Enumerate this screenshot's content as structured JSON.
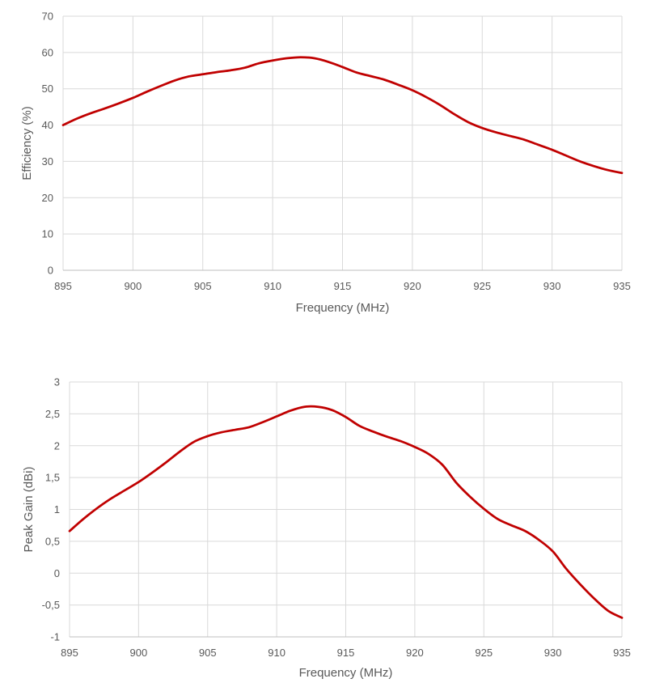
{
  "chart_data": [
    {
      "type": "line",
      "title": "",
      "xlabel": "Frequency (MHz)",
      "ylabel": "Efficiency (%)",
      "xlim": [
        895,
        935
      ],
      "ylim": [
        0,
        70
      ],
      "x_ticks": [
        "895",
        "900",
        "905",
        "910",
        "915",
        "920",
        "925",
        "930",
        "935"
      ],
      "y_ticks": [
        "0",
        "10",
        "20",
        "30",
        "40",
        "50",
        "60",
        "70"
      ],
      "grid": true,
      "legend": "none",
      "series": [
        {
          "color": "#c00000",
          "x": [
            895,
            896,
            897,
            898,
            899,
            900,
            901,
            902,
            903,
            904,
            905,
            906,
            907,
            908,
            909,
            910,
            911,
            912,
            913,
            914,
            915,
            916,
            917,
            918,
            919,
            920,
            921,
            922,
            923,
            924,
            925,
            926,
            927,
            928,
            929,
            930,
            931,
            932,
            933,
            934,
            935
          ],
          "y": [
            40,
            41.8,
            43.3,
            44.6,
            46,
            47.5,
            49.2,
            50.8,
            52.3,
            53.4,
            54,
            54.6,
            55.1,
            55.8,
            57,
            57.8,
            58.4,
            58.7,
            58.4,
            57.4,
            56,
            54.5,
            53.5,
            52.5,
            51.1,
            49.6,
            47.7,
            45.5,
            43,
            40.8,
            39.2,
            38,
            37,
            36,
            34.6,
            33.2,
            31.6,
            30,
            28.7,
            27.6,
            26.8
          ]
        }
      ]
    },
    {
      "type": "line",
      "title": "",
      "xlabel": "Frequency (MHz)",
      "ylabel": "Peak Gain (dBi)",
      "xlim": [
        895,
        935
      ],
      "ylim": [
        -1,
        3
      ],
      "x_ticks": [
        "895",
        "900",
        "905",
        "910",
        "915",
        "920",
        "925",
        "930",
        "935"
      ],
      "y_ticks": [
        "-1",
        "-0,5",
        "0",
        "0,5",
        "1",
        "1,5",
        "2",
        "2,5",
        "3"
      ],
      "grid": true,
      "legend": "none",
      "series": [
        {
          "color": "#c00000",
          "x": [
            895,
            896,
            897,
            898,
            899,
            900,
            901,
            902,
            903,
            904,
            905,
            906,
            907,
            908,
            909,
            910,
            911,
            912,
            913,
            914,
            915,
            916,
            917,
            918,
            919,
            920,
            921,
            922,
            923,
            924,
            925,
            926,
            927,
            928,
            929,
            930,
            931,
            932,
            933,
            934,
            935
          ],
          "y": [
            0.66,
            0.85,
            1.02,
            1.17,
            1.3,
            1.43,
            1.58,
            1.74,
            1.91,
            2.06,
            2.15,
            2.21,
            2.25,
            2.29,
            2.37,
            2.46,
            2.55,
            2.61,
            2.61,
            2.56,
            2.45,
            2.31,
            2.22,
            2.14,
            2.07,
            1.98,
            1.87,
            1.7,
            1.42,
            1.2,
            1.01,
            0.85,
            0.75,
            0.66,
            0.52,
            0.34,
            0.06,
            -0.18,
            -0.4,
            -0.59,
            -0.7
          ]
        }
      ]
    }
  ]
}
